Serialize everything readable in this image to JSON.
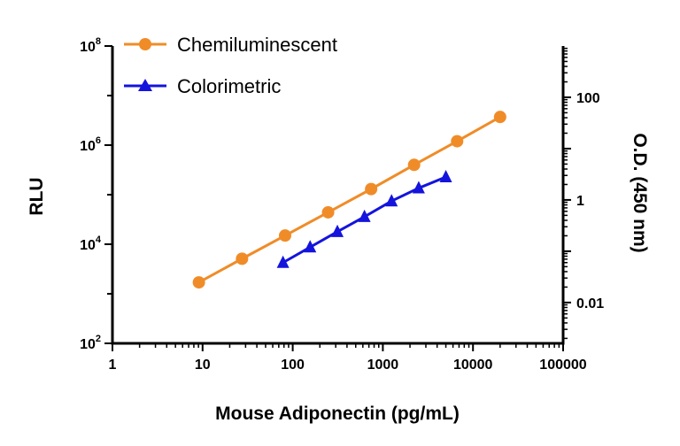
{
  "chart_data": {
    "type": "line",
    "xlabel": "Mouse Adiponectin (pg/mL)",
    "ylabel": "RLU",
    "y2label": "O.D. (450 nm)",
    "x_scale": "log",
    "y_scale": "log",
    "y2_scale": "log",
    "xlim": [
      1,
      100000
    ],
    "ylim": [
      100,
      100000000
    ],
    "y2lim": [
      0.0016,
      1000
    ],
    "x_ticks": [
      "1",
      "10",
      "100",
      "1000",
      "10000",
      "100000"
    ],
    "y_ticks": [
      {
        "base": "10",
        "exp": "2"
      },
      {
        "base": "10",
        "exp": "4"
      },
      {
        "base": "10",
        "exp": "6"
      },
      {
        "base": "10",
        "exp": "8"
      }
    ],
    "y2_ticks": [
      "0.01",
      "1",
      "100"
    ],
    "legend_position": "top-left",
    "series": [
      {
        "name": "Chemiluminescent",
        "axis": "left",
        "color": "#f08c28",
        "marker": "circle",
        "x": [
          9.1,
          27.4,
          82.3,
          247,
          741,
          2222,
          6667,
          20000
        ],
        "y": [
          1700,
          5100,
          15000,
          44000,
          130000,
          400000,
          1200000,
          3700000
        ]
      },
      {
        "name": "Colorimetric",
        "axis": "right",
        "color": "#1414dc",
        "marker": "triangle",
        "x": [
          78,
          156,
          313,
          625,
          1250,
          2500,
          5000
        ],
        "y": [
          0.06,
          0.12,
          0.24,
          0.47,
          0.95,
          1.7,
          2.8
        ]
      }
    ]
  }
}
